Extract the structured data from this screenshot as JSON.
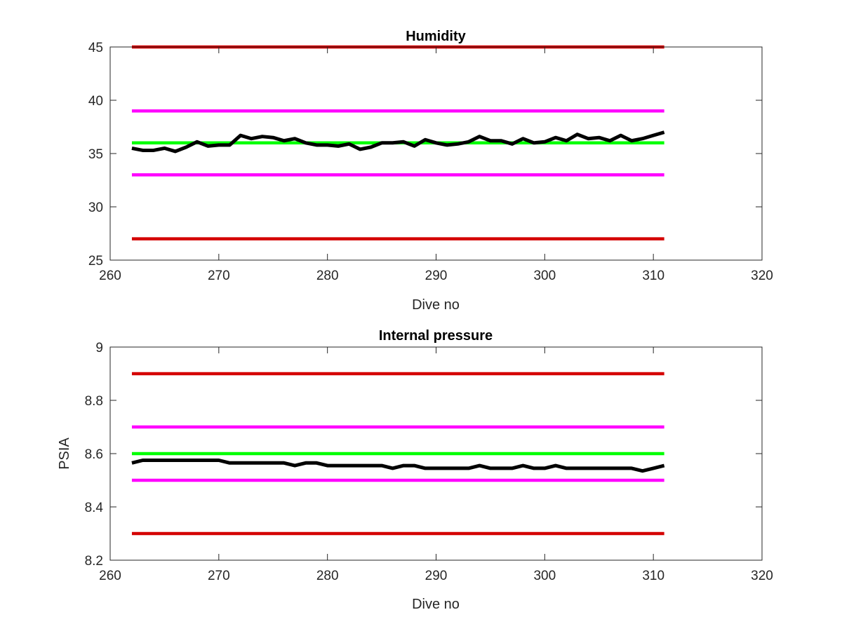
{
  "figure_background": "#ffffff",
  "chart_data": [
    {
      "type": "line",
      "title": "Humidity",
      "xlabel": "Dive no",
      "ylabel": "",
      "xlim": [
        260,
        320
      ],
      "ylim": [
        25,
        45
      ],
      "xticks": [
        260,
        270,
        280,
        290,
        300,
        310,
        320
      ],
      "yticks": [
        25,
        30,
        35,
        40,
        45
      ],
      "xtick_labels": [
        "260",
        "270",
        "280",
        "290",
        "300",
        "310",
        "320"
      ],
      "ytick_labels": [
        "25",
        "30",
        "35",
        "40",
        "45"
      ],
      "grid": false,
      "series": [
        {
          "role": "limit",
          "color": "#d40000",
          "x": [
            262,
            311
          ],
          "y": [
            45,
            45
          ]
        },
        {
          "role": "limit",
          "color": "#ff00ff",
          "x": [
            262,
            311
          ],
          "y": [
            39,
            39
          ]
        },
        {
          "role": "limit",
          "color": "#00ff00",
          "x": [
            262,
            311
          ],
          "y": [
            36,
            36
          ]
        },
        {
          "role": "limit",
          "color": "#ff00ff",
          "x": [
            262,
            311
          ],
          "y": [
            33,
            33
          ]
        },
        {
          "role": "limit",
          "color": "#d40000",
          "x": [
            262,
            311
          ],
          "y": [
            27,
            27
          ]
        },
        {
          "role": "data",
          "color": "#000000",
          "x": [
            262,
            263,
            264,
            265,
            266,
            267,
            268,
            269,
            270,
            271,
            272,
            273,
            274,
            275,
            276,
            277,
            278,
            279,
            280,
            281,
            282,
            283,
            284,
            285,
            286,
            287,
            288,
            289,
            290,
            291,
            292,
            293,
            294,
            295,
            296,
            297,
            298,
            299,
            300,
            301,
            302,
            303,
            304,
            305,
            306,
            307,
            308,
            309,
            310,
            311
          ],
          "y": [
            35.5,
            35.3,
            35.3,
            35.5,
            35.2,
            35.6,
            36.1,
            35.7,
            35.8,
            35.8,
            36.7,
            36.4,
            36.6,
            36.5,
            36.2,
            36.4,
            36.0,
            35.8,
            35.8,
            35.7,
            35.9,
            35.4,
            35.6,
            36.0,
            36.0,
            36.1,
            35.7,
            36.3,
            36.0,
            35.8,
            35.9,
            36.1,
            36.6,
            36.2,
            36.2,
            35.9,
            36.4,
            36.0,
            36.1,
            36.5,
            36.2,
            36.8,
            36.4,
            36.5,
            36.2,
            36.7,
            36.2,
            36.4,
            36.7,
            37.0
          ]
        }
      ]
    },
    {
      "type": "line",
      "title": "Internal pressure",
      "xlabel": "Dive no",
      "ylabel": "PSIA",
      "xlim": [
        260,
        320
      ],
      "ylim": [
        8.2,
        9.0
      ],
      "xticks": [
        260,
        270,
        280,
        290,
        300,
        310,
        320
      ],
      "yticks": [
        8.2,
        8.4,
        8.6,
        8.8,
        9.0
      ],
      "xtick_labels": [
        "260",
        "270",
        "280",
        "290",
        "300",
        "310",
        "320"
      ],
      "ytick_labels": [
        "8.2",
        "8.4",
        "8.6",
        "8.8",
        "9"
      ],
      "grid": false,
      "series": [
        {
          "role": "limit",
          "color": "#d40000",
          "x": [
            262,
            311
          ],
          "y": [
            8.9,
            8.9
          ]
        },
        {
          "role": "limit",
          "color": "#ff00ff",
          "x": [
            262,
            311
          ],
          "y": [
            8.7,
            8.7
          ]
        },
        {
          "role": "limit",
          "color": "#00ff00",
          "x": [
            262,
            311
          ],
          "y": [
            8.6,
            8.6
          ]
        },
        {
          "role": "limit",
          "color": "#ff00ff",
          "x": [
            262,
            311
          ],
          "y": [
            8.5,
            8.5
          ]
        },
        {
          "role": "limit",
          "color": "#d40000",
          "x": [
            262,
            311
          ],
          "y": [
            8.3,
            8.3
          ]
        },
        {
          "role": "data",
          "color": "#000000",
          "x": [
            262,
            263,
            264,
            265,
            266,
            267,
            268,
            269,
            270,
            271,
            272,
            273,
            274,
            275,
            276,
            277,
            278,
            279,
            280,
            281,
            282,
            283,
            284,
            285,
            286,
            287,
            288,
            289,
            290,
            291,
            292,
            293,
            294,
            295,
            296,
            297,
            298,
            299,
            300,
            301,
            302,
            303,
            304,
            305,
            306,
            307,
            308,
            309,
            310,
            311
          ],
          "y": [
            8.565,
            8.575,
            8.575,
            8.575,
            8.575,
            8.575,
            8.575,
            8.575,
            8.575,
            8.565,
            8.565,
            8.565,
            8.565,
            8.565,
            8.565,
            8.555,
            8.565,
            8.565,
            8.555,
            8.555,
            8.555,
            8.555,
            8.555,
            8.555,
            8.545,
            8.555,
            8.555,
            8.545,
            8.545,
            8.545,
            8.545,
            8.545,
            8.555,
            8.545,
            8.545,
            8.545,
            8.555,
            8.545,
            8.545,
            8.555,
            8.545,
            8.545,
            8.545,
            8.545,
            8.545,
            8.545,
            8.545,
            8.535,
            8.545,
            8.555
          ]
        }
      ]
    }
  ]
}
